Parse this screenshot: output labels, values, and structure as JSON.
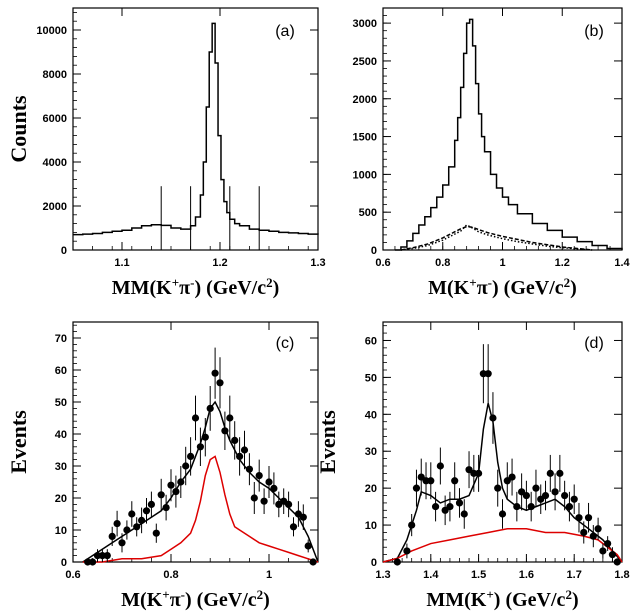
{
  "chart_data": [
    {
      "panel": "a",
      "type": "line",
      "label": "(a)",
      "ylabel": "Counts",
      "xlabel": {
        "pre": "MM(K",
        "sup1": "+",
        "mid": "π",
        "sup2": "-",
        "post": ") (GeV/c",
        "sup3": "2",
        "end": ")"
      },
      "xlim": [
        1.05,
        1.3
      ],
      "ylim": [
        0,
        11000
      ],
      "xticks": [
        1.1,
        1.2,
        1.3
      ],
      "yticks": [
        0,
        2000,
        4000,
        6000,
        8000,
        10000
      ],
      "vlines": [
        1.14,
        1.17,
        1.21,
        1.24
      ],
      "series": [
        {
          "style": "step",
          "color": "#000000",
          "x": [
            1.05,
            1.06,
            1.07,
            1.08,
            1.09,
            1.1,
            1.11,
            1.12,
            1.13,
            1.14,
            1.15,
            1.16,
            1.17,
            1.175,
            1.18,
            1.183,
            1.186,
            1.189,
            1.192,
            1.195,
            1.198,
            1.201,
            1.204,
            1.207,
            1.21,
            1.215,
            1.22,
            1.23,
            1.24,
            1.25,
            1.26,
            1.27,
            1.28,
            1.29,
            1.3
          ],
          "y": [
            700,
            720,
            750,
            800,
            850,
            900,
            1000,
            1100,
            1150,
            1120,
            1000,
            950,
            1100,
            1500,
            2500,
            4000,
            6500,
            9000,
            10300,
            8500,
            5200,
            3200,
            2200,
            1700,
            1400,
            1200,
            1100,
            950,
            900,
            850,
            800,
            780,
            750,
            720,
            700
          ]
        }
      ]
    },
    {
      "panel": "b",
      "type": "line",
      "label": "(b)",
      "ylabel": "",
      "xlabel": {
        "pre": "M(K",
        "sup1": "+",
        "mid": "π",
        "sup2": "-",
        "post": ") (GeV/c",
        "sup3": "2",
        "end": ")"
      },
      "xlim": [
        0.6,
        1.4
      ],
      "ylim": [
        0,
        3200
      ],
      "xticks": [
        0.6,
        0.8,
        1,
        1.2,
        1.4
      ],
      "yticks": [
        0,
        500,
        1000,
        1500,
        2000,
        2500,
        3000
      ],
      "vlines": [],
      "series": [
        {
          "style": "step",
          "color": "#000000",
          "x": [
            0.64,
            0.66,
            0.68,
            0.7,
            0.72,
            0.74,
            0.76,
            0.78,
            0.8,
            0.82,
            0.84,
            0.85,
            0.86,
            0.87,
            0.88,
            0.89,
            0.9,
            0.91,
            0.92,
            0.93,
            0.94,
            0.96,
            0.98,
            1.0,
            1.02,
            1.05,
            1.1,
            1.15,
            1.2,
            1.25,
            1.3,
            1.35,
            1.4
          ],
          "y": [
            0,
            40,
            120,
            220,
            330,
            440,
            560,
            700,
            860,
            1100,
            1450,
            1750,
            2150,
            2600,
            3000,
            3050,
            2700,
            2200,
            1800,
            1500,
            1300,
            1000,
            820,
            700,
            600,
            480,
            350,
            260,
            170,
            110,
            60,
            20,
            0
          ]
        },
        {
          "style": "dashed",
          "color": "#000000",
          "x": [
            0.66,
            0.7,
            0.75,
            0.8,
            0.84,
            0.86,
            0.88,
            0.9,
            0.92,
            0.95,
            1.0,
            1.05,
            1.1,
            1.15,
            1.2,
            1.25,
            1.3
          ],
          "y": [
            0,
            30,
            80,
            160,
            240,
            280,
            310,
            300,
            270,
            230,
            180,
            140,
            100,
            70,
            40,
            20,
            0
          ]
        },
        {
          "style": "dotted",
          "color": "#000000",
          "x": [
            0.66,
            0.7,
            0.75,
            0.8,
            0.84,
            0.86,
            0.88,
            0.9,
            0.92,
            0.95,
            1.0,
            1.05,
            1.1,
            1.15,
            1.2,
            1.25,
            1.3
          ],
          "y": [
            0,
            20,
            60,
            130,
            210,
            250,
            330,
            290,
            240,
            200,
            150,
            110,
            80,
            50,
            30,
            15,
            0
          ]
        }
      ]
    },
    {
      "panel": "c",
      "type": "scatter",
      "label": "(c)",
      "ylabel": "Events",
      "xlabel": {
        "pre": "M(K",
        "sup1": "+",
        "mid": "π",
        "sup2": "-",
        "post": ") (GeV/c",
        "sup3": "2",
        "end": ")"
      },
      "xlim": [
        0.6,
        1.1
      ],
      "ylim": [
        0,
        75
      ],
      "xticks": [
        0.6,
        0.8,
        1
      ],
      "yticks": [
        0,
        10,
        20,
        30,
        40,
        50,
        60,
        70
      ],
      "vlines": [],
      "points": {
        "x": [
          0.63,
          0.64,
          0.65,
          0.66,
          0.67,
          0.68,
          0.69,
          0.7,
          0.71,
          0.72,
          0.73,
          0.74,
          0.75,
          0.76,
          0.77,
          0.78,
          0.79,
          0.8,
          0.81,
          0.82,
          0.83,
          0.84,
          0.85,
          0.86,
          0.87,
          0.88,
          0.89,
          0.9,
          0.91,
          0.92,
          0.93,
          0.94,
          0.95,
          0.96,
          0.97,
          0.98,
          0.99,
          1.0,
          1.01,
          1.02,
          1.03,
          1.04,
          1.05,
          1.06,
          1.07,
          1.08,
          1.09
        ],
        "y": [
          0,
          0,
          2,
          2,
          2,
          8,
          12,
          6,
          10,
          15,
          11,
          13,
          16,
          18,
          9,
          21,
          17,
          24,
          22,
          25,
          30,
          33,
          45,
          36,
          39,
          48,
          59,
          56,
          41,
          45,
          38,
          33,
          35,
          29,
          20,
          27,
          19,
          25,
          23,
          18,
          19,
          18,
          11,
          15,
          14,
          5,
          0
        ],
        "err": [
          1,
          1,
          2,
          2,
          2,
          3,
          4,
          3,
          3,
          4,
          3,
          4,
          4,
          4,
          3,
          5,
          4,
          5,
          5,
          5,
          6,
          6,
          7,
          6,
          6,
          7,
          8,
          8,
          6,
          7,
          6,
          6,
          6,
          5,
          5,
          5,
          4,
          5,
          5,
          4,
          4,
          4,
          3,
          4,
          4,
          2,
          1
        ]
      },
      "series": [
        {
          "style": "line",
          "color": "#000000",
          "x": [
            0.62,
            0.65,
            0.68,
            0.7,
            0.72,
            0.74,
            0.76,
            0.78,
            0.8,
            0.82,
            0.84,
            0.86,
            0.87,
            0.88,
            0.89,
            0.9,
            0.91,
            0.92,
            0.94,
            0.96,
            0.98,
            1.0,
            1.02,
            1.04,
            1.06,
            1.08,
            1.1
          ],
          "y": [
            0,
            3,
            6,
            8,
            10,
            12,
            14,
            16,
            20,
            25,
            29,
            37,
            42,
            48,
            50,
            47,
            42,
            38,
            32,
            28,
            25,
            23,
            20,
            17,
            14,
            8,
            0
          ]
        },
        {
          "style": "line",
          "color": "#dd0000",
          "x": [
            0.62,
            0.66,
            0.7,
            0.74,
            0.78,
            0.8,
            0.82,
            0.84,
            0.85,
            0.86,
            0.87,
            0.88,
            0.89,
            0.9,
            0.91,
            0.92,
            0.93,
            0.94,
            0.96,
            0.98,
            1.0,
            1.02,
            1.04,
            1.06,
            1.08,
            1.1
          ],
          "y": [
            0,
            0,
            1,
            1,
            2,
            4,
            6,
            9,
            13,
            19,
            27,
            32,
            33,
            28,
            21,
            15,
            11,
            10,
            8,
            6,
            5,
            4,
            3,
            2,
            1,
            0
          ]
        }
      ]
    },
    {
      "panel": "d",
      "type": "scatter",
      "label": "(d)",
      "ylabel": "Events",
      "xlabel": {
        "pre": "MM(K",
        "sup1": "+",
        "mid": "",
        "sup2": "",
        "post": ") (GeV/c",
        "sup3": "2",
        "end": ")"
      },
      "xlim": [
        1.3,
        1.8
      ],
      "ylim": [
        0,
        65
      ],
      "xticks": [
        1.3,
        1.4,
        1.5,
        1.6,
        1.7,
        1.8
      ],
      "yticks": [
        0,
        10,
        20,
        30,
        40,
        50,
        60
      ],
      "vlines": [],
      "points": {
        "x": [
          1.33,
          1.35,
          1.36,
          1.37,
          1.38,
          1.39,
          1.4,
          1.41,
          1.42,
          1.43,
          1.44,
          1.45,
          1.46,
          1.47,
          1.48,
          1.49,
          1.5,
          1.51,
          1.52,
          1.53,
          1.54,
          1.55,
          1.56,
          1.57,
          1.58,
          1.59,
          1.6,
          1.61,
          1.62,
          1.63,
          1.64,
          1.65,
          1.66,
          1.67,
          1.68,
          1.69,
          1.7,
          1.71,
          1.72,
          1.73,
          1.74,
          1.75,
          1.76,
          1.77,
          1.78,
          1.79
        ],
        "y": [
          0,
          3,
          10,
          20,
          23,
          22,
          22,
          15,
          26,
          14,
          15,
          22,
          16,
          13,
          25,
          24,
          24,
          51,
          51,
          39,
          20,
          13,
          22,
          23,
          15,
          19,
          18,
          15,
          20,
          17,
          18,
          24,
          19,
          24,
          18,
          15,
          17,
          12,
          8,
          12,
          7,
          9,
          3,
          5,
          2,
          0
        ],
        "err": [
          1,
          2,
          3,
          5,
          5,
          5,
          5,
          4,
          5,
          4,
          4,
          5,
          4,
          4,
          5,
          5,
          5,
          8,
          8,
          7,
          5,
          4,
          5,
          5,
          4,
          5,
          4,
          4,
          5,
          4,
          4,
          5,
          5,
          5,
          4,
          4,
          4,
          4,
          3,
          4,
          3,
          3,
          2,
          2,
          2,
          1
        ]
      },
      "series": [
        {
          "style": "line",
          "color": "#000000",
          "x": [
            1.3,
            1.33,
            1.35,
            1.37,
            1.38,
            1.4,
            1.42,
            1.44,
            1.46,
            1.48,
            1.5,
            1.51,
            1.52,
            1.53,
            1.54,
            1.55,
            1.56,
            1.58,
            1.6,
            1.62,
            1.64,
            1.66,
            1.68,
            1.7,
            1.72,
            1.74,
            1.76,
            1.78,
            1.8
          ],
          "y": [
            0,
            1,
            6,
            14,
            19,
            18,
            16,
            17,
            17,
            18,
            24,
            36,
            43,
            38,
            27,
            20,
            17,
            15,
            14,
            15,
            16,
            17,
            15,
            12,
            10,
            8,
            6,
            3,
            0
          ]
        },
        {
          "style": "line",
          "color": "#dd0000",
          "x": [
            1.3,
            1.33,
            1.36,
            1.4,
            1.44,
            1.48,
            1.52,
            1.56,
            1.6,
            1.64,
            1.68,
            1.72,
            1.75,
            1.77,
            1.79,
            1.8
          ],
          "y": [
            0,
            1,
            3,
            5,
            6,
            7,
            8,
            9,
            9,
            8,
            8,
            7,
            6,
            4,
            2,
            0
          ]
        }
      ]
    }
  ]
}
